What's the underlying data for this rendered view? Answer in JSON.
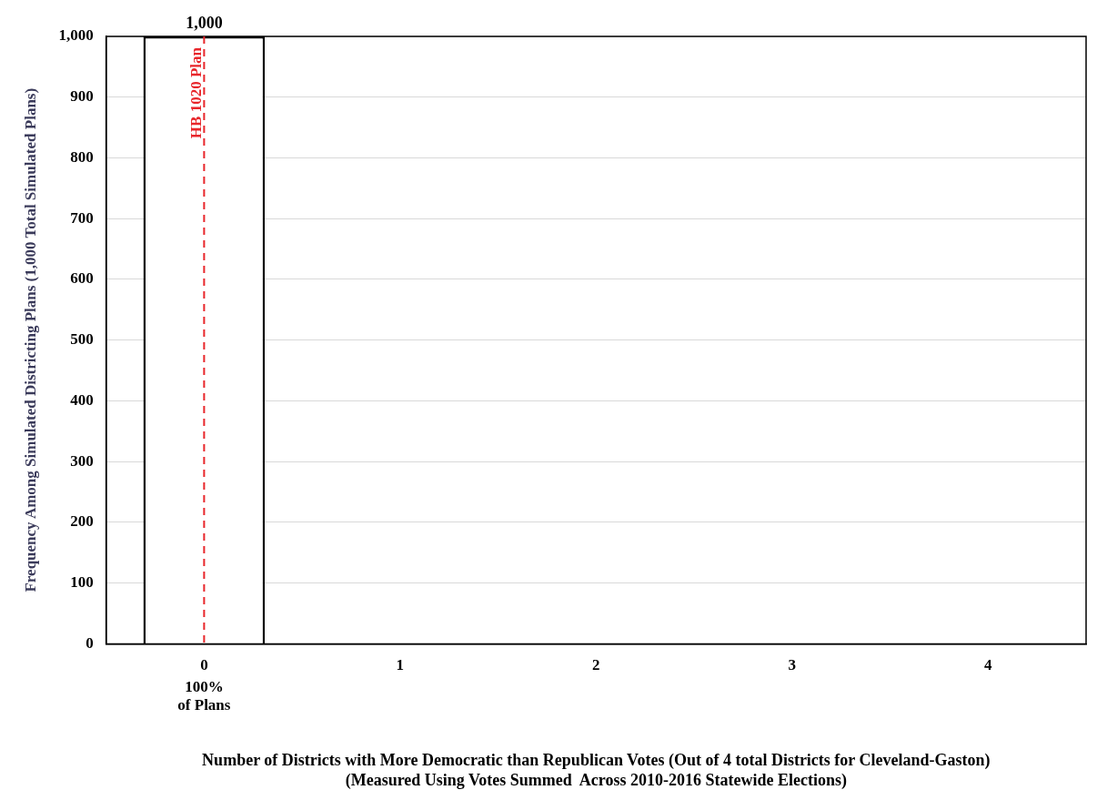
{
  "chart_data": {
    "type": "bar",
    "xlabel": "Number of Districts with More Democratic than Republican Votes (Out of 4 total Districts for Cleveland-Gaston)\n(Measured Using Votes Summed  Across 2010-2016 Statewide Elections)",
    "ylabel": "Frequency Among Simulated Districting Plans (1,000 Total Simulated Plans)",
    "categories": [
      "0",
      "1",
      "2",
      "3",
      "4"
    ],
    "values": [
      1000,
      0,
      0,
      0,
      0
    ],
    "value_labels": [
      "1,000",
      null,
      null,
      null,
      null
    ],
    "color": "#ffffff",
    "ylim": [
      0,
      1000
    ],
    "yticks": [
      0,
      100,
      200,
      300,
      400,
      500,
      600,
      700,
      800,
      900,
      {
        "value": 1000,
        "label": "1,000"
      }
    ],
    "grid": "y",
    "ref_lines": [
      {
        "axis": "x",
        "value": "0",
        "label": "HB 1020 Plan",
        "color": "#e8262b",
        "line_style": "dashed"
      }
    ],
    "annotations": [
      "100%\nof Plans"
    ]
  }
}
